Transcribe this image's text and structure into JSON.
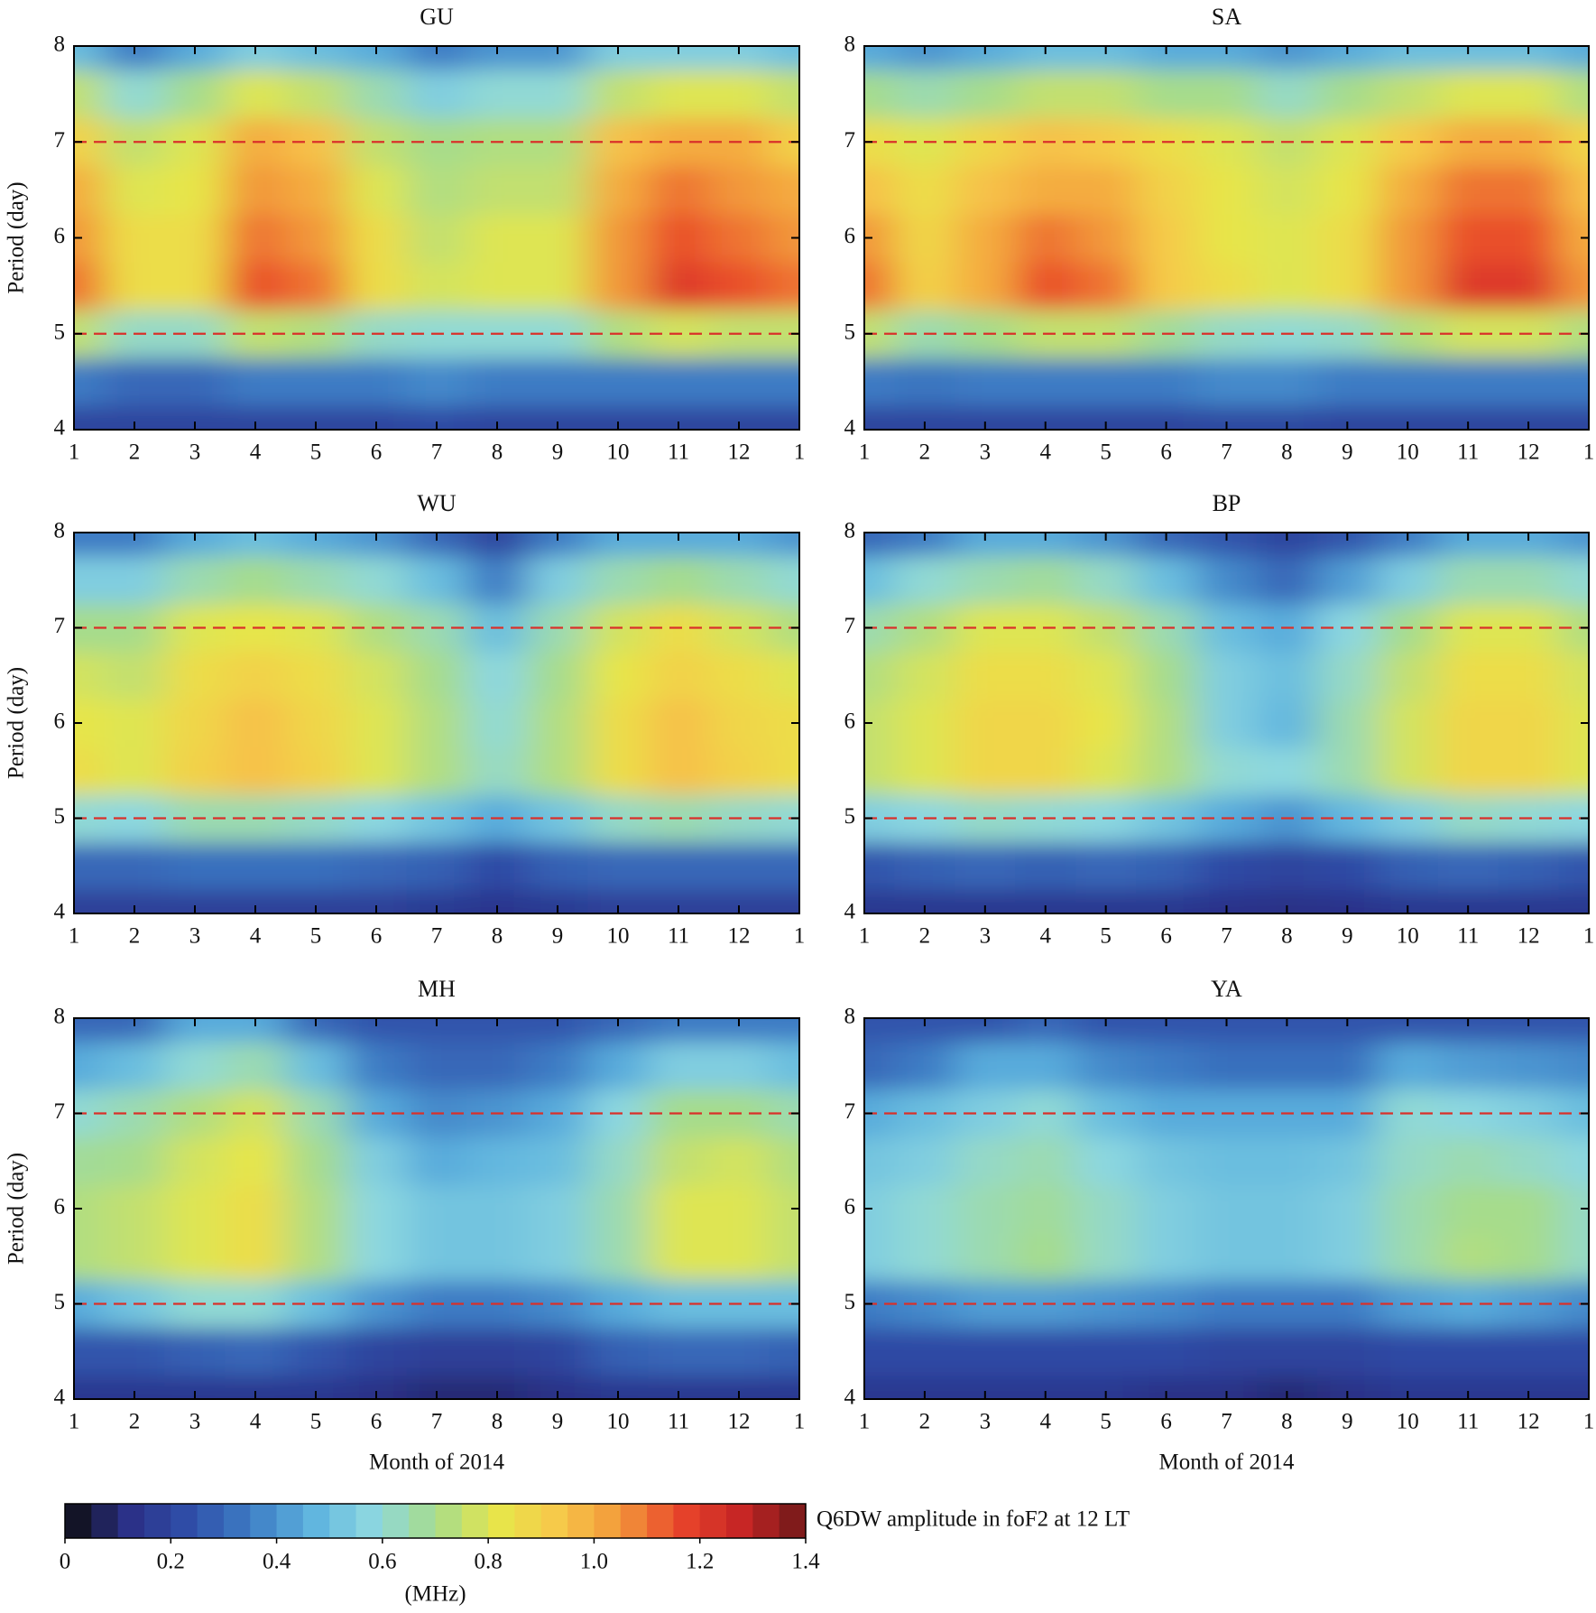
{
  "chart_data": [
    {
      "type": "heatmap",
      "title": "GU",
      "ylabel": "Period (day)",
      "x": [
        1,
        2,
        3,
        4,
        5,
        6,
        7,
        8,
        9,
        10,
        11,
        12,
        13
      ],
      "y": [
        4,
        4.5,
        5,
        5.5,
        6,
        6.5,
        7,
        7.5,
        8
      ],
      "z": [
        [
          0.2,
          0.2,
          0.2,
          0.2,
          0.2,
          0.2,
          0.22,
          0.2,
          0.2,
          0.2,
          0.2,
          0.2,
          0.2
        ],
        [
          0.35,
          0.3,
          0.3,
          0.35,
          0.35,
          0.35,
          0.38,
          0.35,
          0.35,
          0.35,
          0.35,
          0.35,
          0.35
        ],
        [
          0.75,
          0.62,
          0.62,
          0.75,
          0.72,
          0.62,
          0.6,
          0.6,
          0.6,
          0.72,
          0.78,
          0.75,
          0.75
        ],
        [
          1.1,
          0.85,
          0.85,
          1.15,
          1.1,
          0.85,
          0.78,
          0.8,
          0.8,
          1.05,
          1.2,
          1.15,
          1.1
        ],
        [
          1.05,
          0.85,
          0.85,
          1.1,
          1.05,
          0.85,
          0.75,
          0.8,
          0.8,
          1.05,
          1.15,
          1.1,
          1.05
        ],
        [
          1,
          0.8,
          0.82,
          1.05,
          1,
          0.8,
          0.72,
          0.75,
          0.75,
          1,
          1.1,
          1.05,
          1
        ],
        [
          0.9,
          0.75,
          0.8,
          1,
          0.95,
          0.75,
          0.7,
          0.72,
          0.72,
          0.95,
          1,
          1,
          0.9
        ],
        [
          0.75,
          0.6,
          0.7,
          0.8,
          0.75,
          0.65,
          0.55,
          0.6,
          0.6,
          0.75,
          0.8,
          0.8,
          0.75
        ],
        [
          0.5,
          0.35,
          0.45,
          0.55,
          0.5,
          0.45,
          0.35,
          0.4,
          0.4,
          0.55,
          0.55,
          0.55,
          0.5
        ]
      ],
      "xlim": [
        1,
        13
      ],
      "ylim": [
        4,
        8
      ],
      "xticks": [
        1,
        2,
        3,
        4,
        5,
        6,
        7,
        8,
        9,
        10,
        11,
        12,
        {
          "value": 13,
          "label": "1"
        }
      ],
      "yticks": [
        4,
        5,
        6,
        7,
        8
      ],
      "hlines": [
        5,
        7
      ],
      "hline_color": "#d9302a"
    },
    {
      "type": "heatmap",
      "title": "SA",
      "x": [
        1,
        2,
        3,
        4,
        5,
        6,
        7,
        8,
        9,
        10,
        11,
        12,
        13
      ],
      "y": [
        4,
        4.5,
        5,
        5.5,
        6,
        6.5,
        7,
        7.5,
        8
      ],
      "z": [
        [
          0.2,
          0.2,
          0.2,
          0.2,
          0.2,
          0.2,
          0.21,
          0.21,
          0.2,
          0.2,
          0.2,
          0.2,
          0.2
        ],
        [
          0.35,
          0.33,
          0.35,
          0.35,
          0.35,
          0.35,
          0.38,
          0.38,
          0.35,
          0.35,
          0.35,
          0.35,
          0.35
        ],
        [
          0.75,
          0.65,
          0.7,
          0.75,
          0.75,
          0.68,
          0.62,
          0.6,
          0.62,
          0.72,
          0.78,
          0.78,
          0.72
        ],
        [
          1.1,
          0.9,
          1,
          1.15,
          1.1,
          0.92,
          0.85,
          0.8,
          0.85,
          1.05,
          1.2,
          1.2,
          1.05
        ],
        [
          1.05,
          0.88,
          1,
          1.1,
          1.05,
          0.92,
          0.82,
          0.8,
          0.85,
          1.05,
          1.15,
          1.15,
          1
        ],
        [
          0.95,
          0.85,
          0.95,
          1,
          1,
          0.9,
          0.82,
          0.78,
          0.82,
          1,
          1.1,
          1.1,
          0.95
        ],
        [
          0.85,
          0.8,
          0.88,
          0.95,
          0.92,
          0.85,
          0.8,
          0.75,
          0.8,
          0.92,
          1,
          1,
          0.88
        ],
        [
          0.7,
          0.65,
          0.7,
          0.75,
          0.75,
          0.7,
          0.7,
          0.62,
          0.7,
          0.75,
          0.8,
          0.8,
          0.72
        ],
        [
          0.45,
          0.4,
          0.45,
          0.5,
          0.5,
          0.45,
          0.45,
          0.4,
          0.45,
          0.5,
          0.5,
          0.5,
          0.45
        ]
      ],
      "xlim": [
        1,
        13
      ],
      "ylim": [
        4,
        8
      ],
      "xticks": [
        1,
        2,
        3,
        4,
        5,
        6,
        7,
        8,
        9,
        10,
        11,
        12,
        {
          "value": 13,
          "label": "1"
        }
      ],
      "yticks": [
        4,
        5,
        6,
        7,
        8
      ],
      "hlines": [
        5,
        7
      ],
      "hline_color": "#d9302a"
    },
    {
      "type": "heatmap",
      "title": "WU",
      "ylabel": "Period (day)",
      "x": [
        1,
        2,
        3,
        4,
        5,
        6,
        7,
        8,
        9,
        10,
        11,
        12,
        13
      ],
      "y": [
        4,
        4.5,
        5,
        5.5,
        6,
        6.5,
        7,
        7.5,
        8
      ],
      "z": [
        [
          0.18,
          0.18,
          0.18,
          0.18,
          0.18,
          0.18,
          0.16,
          0.14,
          0.16,
          0.18,
          0.18,
          0.18,
          0.18
        ],
        [
          0.3,
          0.3,
          0.32,
          0.32,
          0.32,
          0.3,
          0.28,
          0.22,
          0.28,
          0.3,
          0.3,
          0.3,
          0.3
        ],
        [
          0.6,
          0.58,
          0.65,
          0.65,
          0.62,
          0.58,
          0.52,
          0.45,
          0.52,
          0.62,
          0.65,
          0.62,
          0.6
        ],
        [
          0.85,
          0.8,
          0.9,
          0.95,
          0.9,
          0.8,
          0.72,
          0.62,
          0.72,
          0.85,
          0.95,
          0.9,
          0.85
        ],
        [
          0.82,
          0.8,
          0.88,
          0.95,
          0.88,
          0.8,
          0.72,
          0.6,
          0.72,
          0.85,
          0.95,
          0.88,
          0.85
        ],
        [
          0.78,
          0.75,
          0.85,
          0.9,
          0.85,
          0.78,
          0.7,
          0.58,
          0.7,
          0.82,
          0.9,
          0.85,
          0.8
        ],
        [
          0.7,
          0.7,
          0.8,
          0.82,
          0.8,
          0.72,
          0.65,
          0.5,
          0.65,
          0.78,
          0.85,
          0.78,
          0.72
        ],
        [
          0.55,
          0.55,
          0.65,
          0.7,
          0.65,
          0.6,
          0.5,
          0.35,
          0.55,
          0.65,
          0.7,
          0.65,
          0.6
        ],
        [
          0.35,
          0.35,
          0.45,
          0.5,
          0.45,
          0.4,
          0.3,
          0.2,
          0.35,
          0.45,
          0.45,
          0.45,
          0.4
        ]
      ],
      "xlim": [
        1,
        13
      ],
      "ylim": [
        4,
        8
      ],
      "xticks": [
        1,
        2,
        3,
        4,
        5,
        6,
        7,
        8,
        9,
        10,
        11,
        12,
        {
          "value": 13,
          "label": "1"
        }
      ],
      "yticks": [
        4,
        5,
        6,
        7,
        8
      ],
      "hlines": [
        5,
        7
      ],
      "hline_color": "#d9302a"
    },
    {
      "type": "heatmap",
      "title": "BP",
      "x": [
        1,
        2,
        3,
        4,
        5,
        6,
        7,
        8,
        9,
        10,
        11,
        12,
        13
      ],
      "y": [
        4,
        4.5,
        5,
        5.5,
        6,
        6.5,
        7,
        7.5,
        8
      ],
      "z": [
        [
          0.15,
          0.15,
          0.15,
          0.15,
          0.15,
          0.15,
          0.13,
          0.12,
          0.13,
          0.15,
          0.15,
          0.15,
          0.15
        ],
        [
          0.25,
          0.28,
          0.3,
          0.28,
          0.3,
          0.28,
          0.22,
          0.2,
          0.22,
          0.28,
          0.3,
          0.28,
          0.25
        ],
        [
          0.55,
          0.58,
          0.62,
          0.6,
          0.58,
          0.52,
          0.45,
          0.4,
          0.48,
          0.55,
          0.62,
          0.6,
          0.58
        ],
        [
          0.75,
          0.8,
          0.88,
          0.88,
          0.8,
          0.72,
          0.6,
          0.58,
          0.65,
          0.78,
          0.88,
          0.88,
          0.8
        ],
        [
          0.75,
          0.8,
          0.88,
          0.88,
          0.82,
          0.72,
          0.55,
          0.48,
          0.65,
          0.78,
          0.88,
          0.88,
          0.8
        ],
        [
          0.72,
          0.78,
          0.85,
          0.85,
          0.8,
          0.7,
          0.55,
          0.5,
          0.62,
          0.75,
          0.85,
          0.85,
          0.78
        ],
        [
          0.65,
          0.72,
          0.8,
          0.8,
          0.75,
          0.65,
          0.5,
          0.45,
          0.58,
          0.7,
          0.8,
          0.8,
          0.72
        ],
        [
          0.5,
          0.6,
          0.65,
          0.68,
          0.62,
          0.5,
          0.38,
          0.3,
          0.42,
          0.55,
          0.65,
          0.65,
          0.6
        ],
        [
          0.3,
          0.35,
          0.45,
          0.45,
          0.4,
          0.3,
          0.25,
          0.2,
          0.25,
          0.35,
          0.45,
          0.45,
          0.4
        ]
      ],
      "xlim": [
        1,
        13
      ],
      "ylim": [
        4,
        8
      ],
      "xticks": [
        1,
        2,
        3,
        4,
        5,
        6,
        7,
        8,
        9,
        10,
        11,
        12,
        {
          "value": 13,
          "label": "1"
        }
      ],
      "yticks": [
        4,
        5,
        6,
        7,
        8
      ],
      "hlines": [
        5,
        7
      ],
      "hline_color": "#d9302a"
    },
    {
      "type": "heatmap",
      "title": "MH",
      "ylabel": "Period (day)",
      "xlabel": "Month of 2014",
      "x": [
        1,
        2,
        3,
        4,
        5,
        6,
        7,
        8,
        9,
        10,
        11,
        12,
        13
      ],
      "y": [
        4,
        4.5,
        5,
        5.5,
        6,
        6.5,
        7,
        7.5,
        8
      ],
      "z": [
        [
          0.15,
          0.15,
          0.15,
          0.15,
          0.15,
          0.12,
          0.1,
          0.1,
          0.12,
          0.15,
          0.15,
          0.15,
          0.15
        ],
        [
          0.25,
          0.25,
          0.28,
          0.3,
          0.25,
          0.2,
          0.18,
          0.18,
          0.2,
          0.28,
          0.3,
          0.3,
          0.28
        ],
        [
          0.45,
          0.52,
          0.6,
          0.6,
          0.5,
          0.4,
          0.35,
          0.35,
          0.38,
          0.45,
          0.5,
          0.5,
          0.5
        ],
        [
          0.72,
          0.75,
          0.8,
          0.85,
          0.72,
          0.58,
          0.52,
          0.52,
          0.55,
          0.65,
          0.8,
          0.8,
          0.75
        ],
        [
          0.72,
          0.75,
          0.8,
          0.85,
          0.72,
          0.58,
          0.52,
          0.52,
          0.55,
          0.65,
          0.8,
          0.8,
          0.75
        ],
        [
          0.68,
          0.7,
          0.78,
          0.82,
          0.7,
          0.55,
          0.45,
          0.48,
          0.5,
          0.62,
          0.75,
          0.78,
          0.72
        ],
        [
          0.6,
          0.65,
          0.72,
          0.78,
          0.65,
          0.45,
          0.38,
          0.4,
          0.45,
          0.58,
          0.7,
          0.7,
          0.65
        ],
        [
          0.45,
          0.5,
          0.6,
          0.65,
          0.5,
          0.35,
          0.3,
          0.3,
          0.35,
          0.45,
          0.55,
          0.55,
          0.5
        ],
        [
          0.3,
          0.3,
          0.45,
          0.45,
          0.3,
          0.25,
          0.25,
          0.25,
          0.25,
          0.3,
          0.35,
          0.35,
          0.35
        ]
      ],
      "xlim": [
        1,
        13
      ],
      "ylim": [
        4,
        8
      ],
      "xticks": [
        1,
        2,
        3,
        4,
        5,
        6,
        7,
        8,
        9,
        10,
        11,
        12,
        {
          "value": 13,
          "label": "1"
        }
      ],
      "yticks": [
        4,
        5,
        6,
        7,
        8
      ],
      "hlines": [
        5,
        7
      ],
      "hline_color": "#d9302a"
    },
    {
      "type": "heatmap",
      "title": "YA",
      "xlabel": "Month of 2014",
      "x": [
        1,
        2,
        3,
        4,
        5,
        6,
        7,
        8,
        9,
        10,
        11,
        12,
        13
      ],
      "y": [
        4,
        4.5,
        5,
        5.5,
        6,
        6.5,
        7,
        7.5,
        8
      ],
      "z": [
        [
          0.15,
          0.15,
          0.15,
          0.15,
          0.15,
          0.12,
          0.12,
          0.1,
          0.12,
          0.15,
          0.15,
          0.15,
          0.15
        ],
        [
          0.22,
          0.22,
          0.22,
          0.22,
          0.22,
          0.22,
          0.2,
          0.2,
          0.2,
          0.22,
          0.22,
          0.22,
          0.22
        ],
        [
          0.35,
          0.38,
          0.42,
          0.42,
          0.4,
          0.38,
          0.35,
          0.35,
          0.35,
          0.42,
          0.45,
          0.42,
          0.38
        ],
        [
          0.55,
          0.6,
          0.65,
          0.7,
          0.62,
          0.55,
          0.52,
          0.52,
          0.55,
          0.65,
          0.72,
          0.7,
          0.62
        ],
        [
          0.55,
          0.6,
          0.65,
          0.68,
          0.62,
          0.55,
          0.52,
          0.52,
          0.55,
          0.65,
          0.7,
          0.7,
          0.62
        ],
        [
          0.52,
          0.55,
          0.62,
          0.65,
          0.58,
          0.52,
          0.5,
          0.5,
          0.52,
          0.62,
          0.65,
          0.62,
          0.58
        ],
        [
          0.45,
          0.5,
          0.55,
          0.6,
          0.5,
          0.45,
          0.45,
          0.45,
          0.45,
          0.6,
          0.58,
          0.55,
          0.5
        ],
        [
          0.3,
          0.35,
          0.45,
          0.45,
          0.38,
          0.35,
          0.32,
          0.32,
          0.32,
          0.45,
          0.42,
          0.4,
          0.38
        ],
        [
          0.25,
          0.25,
          0.25,
          0.3,
          0.25,
          0.25,
          0.25,
          0.25,
          0.25,
          0.25,
          0.25,
          0.25,
          0.25
        ]
      ],
      "xlim": [
        1,
        13
      ],
      "ylim": [
        4,
        8
      ],
      "xticks": [
        1,
        2,
        3,
        4,
        5,
        6,
        7,
        8,
        9,
        10,
        11,
        12,
        {
          "value": 13,
          "label": "1"
        }
      ],
      "yticks": [
        4,
        5,
        6,
        7,
        8
      ],
      "hlines": [
        5,
        7
      ],
      "hline_color": "#d9302a"
    }
  ],
  "colorbar": {
    "label": "Q6DW amplitude in foF2 at 12 LT",
    "unit": "(MHz)",
    "clim": [
      0,
      1.4
    ],
    "cticks": [
      0,
      0.2,
      0.4,
      0.6,
      0.8,
      {
        "value": 1,
        "label": "1.0"
      },
      1.2,
      1.4
    ],
    "colormap": [
      "#0d0d0d",
      "#2b2f86",
      "#2f4ea8",
      "#3d7cc4",
      "#5eb3df",
      "#8dd8e0",
      "#a6dc8c",
      "#e7e64a",
      "#f7c84a",
      "#f2973a",
      "#e8432a",
      "#c42425",
      "#6e1818"
    ]
  }
}
